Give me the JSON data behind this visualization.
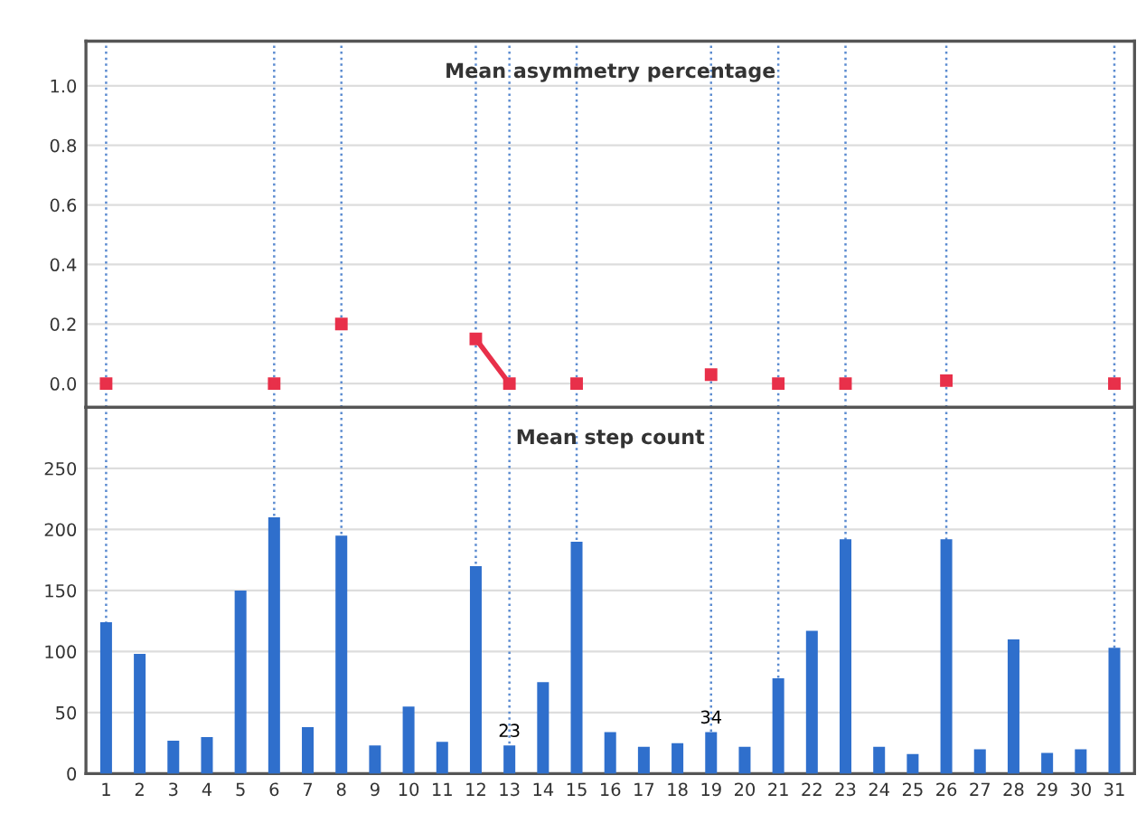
{
  "chart_data": [
    {
      "type": "line",
      "title": "Mean asymmetry percentage",
      "categories": [
        "1",
        "2",
        "3",
        "4",
        "5",
        "6",
        "7",
        "8",
        "9",
        "10",
        "11",
        "12",
        "13",
        "14",
        "15",
        "16",
        "17",
        "18",
        "19",
        "20",
        "21",
        "22",
        "23",
        "24",
        "25",
        "26",
        "27",
        "28",
        "29",
        "30",
        "31"
      ],
      "series": [
        {
          "color": "#e8304a",
          "values": [
            0,
            null,
            null,
            null,
            null,
            0,
            null,
            0.2,
            null,
            null,
            null,
            0.15,
            0,
            null,
            0,
            null,
            null,
            null,
            0.03,
            null,
            0,
            null,
            0,
            null,
            null,
            0.01,
            null,
            null,
            null,
            null,
            0
          ]
        }
      ],
      "marker": "square",
      "line_style": "solid",
      "ylim": [
        -0.08,
        1.15
      ],
      "yticks": [
        {
          "value": 0,
          "label": "0.0"
        },
        {
          "value": 0.2,
          "label": "0.2"
        },
        {
          "value": 0.4,
          "label": "0.4"
        },
        {
          "value": 0.6,
          "label": "0.6"
        },
        {
          "value": 0.8,
          "label": "0.8"
        },
        {
          "value": 1,
          "label": "1.0"
        }
      ],
      "grid": "y",
      "tick_labels": "y",
      "ref_lines": [
        {
          "axis": "x",
          "value": "1",
          "color": "#5b8bd0",
          "line_style": "dotted"
        },
        {
          "axis": "x",
          "value": "6",
          "color": "#5b8bd0",
          "line_style": "dotted"
        },
        {
          "axis": "x",
          "value": "8",
          "color": "#5b8bd0",
          "line_style": "dotted"
        },
        {
          "axis": "x",
          "value": "12",
          "color": "#5b8bd0",
          "line_style": "dotted"
        },
        {
          "axis": "x",
          "value": "13",
          "color": "#5b8bd0",
          "line_style": "dotted"
        },
        {
          "axis": "x",
          "value": "15",
          "color": "#5b8bd0",
          "line_style": "dotted"
        },
        {
          "axis": "x",
          "value": "19",
          "color": "#5b8bd0",
          "line_style": "dotted"
        },
        {
          "axis": "x",
          "value": "21",
          "color": "#5b8bd0",
          "line_style": "dotted"
        },
        {
          "axis": "x",
          "value": "23",
          "color": "#5b8bd0",
          "line_style": "dotted"
        },
        {
          "axis": "x",
          "value": "26",
          "color": "#5b8bd0",
          "line_style": "dotted"
        },
        {
          "axis": "x",
          "value": "31",
          "color": "#5b8bd0",
          "line_style": "dotted"
        }
      ]
    },
    {
      "type": "bar",
      "title": "Mean step count",
      "categories": [
        "1",
        "2",
        "3",
        "4",
        "5",
        "6",
        "7",
        "8",
        "9",
        "10",
        "11",
        "12",
        "13",
        "14",
        "15",
        "16",
        "17",
        "18",
        "19",
        "20",
        "21",
        "22",
        "23",
        "24",
        "25",
        "26",
        "27",
        "28",
        "29",
        "30",
        "31"
      ],
      "series": [
        {
          "color": "#2f6fcc",
          "values": [
            124,
            98,
            27,
            30,
            150,
            210,
            38,
            195,
            23,
            55,
            26,
            170,
            23,
            75,
            190,
            34,
            22,
            25,
            34,
            22,
            78,
            117,
            192,
            22,
            16,
            192,
            20,
            110,
            17,
            20,
            103
          ],
          "value_labels": [
            null,
            null,
            null,
            null,
            null,
            null,
            null,
            null,
            null,
            null,
            null,
            null,
            "23",
            null,
            null,
            null,
            null,
            null,
            "34",
            null,
            null,
            null,
            null,
            null,
            null,
            null,
            null,
            null,
            null,
            null,
            null
          ]
        }
      ],
      "ylim": [
        0,
        300
      ],
      "yticks": [
        0,
        50,
        100,
        150,
        200,
        250
      ],
      "grid": "y",
      "ref_lines": [
        {
          "axis": "x",
          "value": "1",
          "color": "#5b8bd0",
          "line_style": "dotted"
        },
        {
          "axis": "x",
          "value": "6",
          "color": "#5b8bd0",
          "line_style": "dotted"
        },
        {
          "axis": "x",
          "value": "8",
          "color": "#5b8bd0",
          "line_style": "dotted"
        },
        {
          "axis": "x",
          "value": "12",
          "color": "#5b8bd0",
          "line_style": "dotted"
        },
        {
          "axis": "x",
          "value": "13",
          "color": "#5b8bd0",
          "line_style": "dotted"
        },
        {
          "axis": "x",
          "value": "15",
          "color": "#5b8bd0",
          "line_style": "dotted"
        },
        {
          "axis": "x",
          "value": "19",
          "color": "#5b8bd0",
          "line_style": "dotted"
        },
        {
          "axis": "x",
          "value": "21",
          "color": "#5b8bd0",
          "line_style": "dotted"
        },
        {
          "axis": "x",
          "value": "23",
          "color": "#5b8bd0",
          "line_style": "dotted"
        },
        {
          "axis": "x",
          "value": "26",
          "color": "#5b8bd0",
          "line_style": "dotted"
        },
        {
          "axis": "x",
          "value": "31",
          "color": "#5b8bd0",
          "line_style": "dotted"
        }
      ]
    }
  ]
}
